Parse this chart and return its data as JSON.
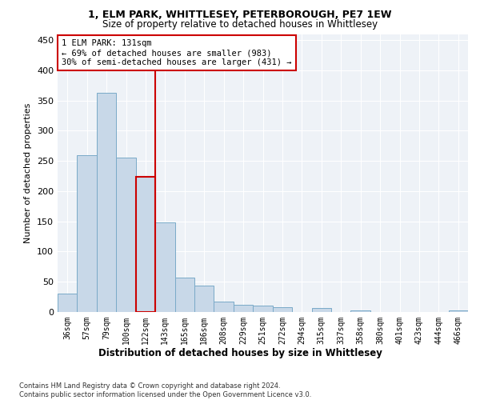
{
  "title_line1": "1, ELM PARK, WHITTLESEY, PETERBOROUGH, PE7 1EW",
  "title_line2": "Size of property relative to detached houses in Whittlesey",
  "xlabel": "Distribution of detached houses by size in Whittlesey",
  "ylabel": "Number of detached properties",
  "categories": [
    "36sqm",
    "57sqm",
    "79sqm",
    "100sqm",
    "122sqm",
    "143sqm",
    "165sqm",
    "186sqm",
    "208sqm",
    "229sqm",
    "251sqm",
    "272sqm",
    "294sqm",
    "315sqm",
    "337sqm",
    "358sqm",
    "380sqm",
    "401sqm",
    "423sqm",
    "444sqm",
    "466sqm"
  ],
  "values": [
    30,
    260,
    363,
    255,
    224,
    148,
    57,
    44,
    17,
    12,
    10,
    8,
    0,
    6,
    0,
    3,
    0,
    0,
    0,
    0,
    3
  ],
  "bar_color": "#c8d8e8",
  "bar_edge_color": "#7aaac8",
  "highlight_bar_index": 4,
  "highlight_bar_edge_color": "#cc0000",
  "vline_x": 4.5,
  "vline_color": "#cc0000",
  "annotation_text": "1 ELM PARK: 131sqm\n← 69% of detached houses are smaller (983)\n30% of semi-detached houses are larger (431) →",
  "annotation_box_color": "#ffffff",
  "annotation_box_edge_color": "#cc0000",
  "ylim": [
    0,
    460
  ],
  "yticks": [
    0,
    50,
    100,
    150,
    200,
    250,
    300,
    350,
    400,
    450
  ],
  "background_color": "#eef2f7",
  "footnote": "Contains HM Land Registry data © Crown copyright and database right 2024.\nContains public sector information licensed under the Open Government Licence v3.0."
}
